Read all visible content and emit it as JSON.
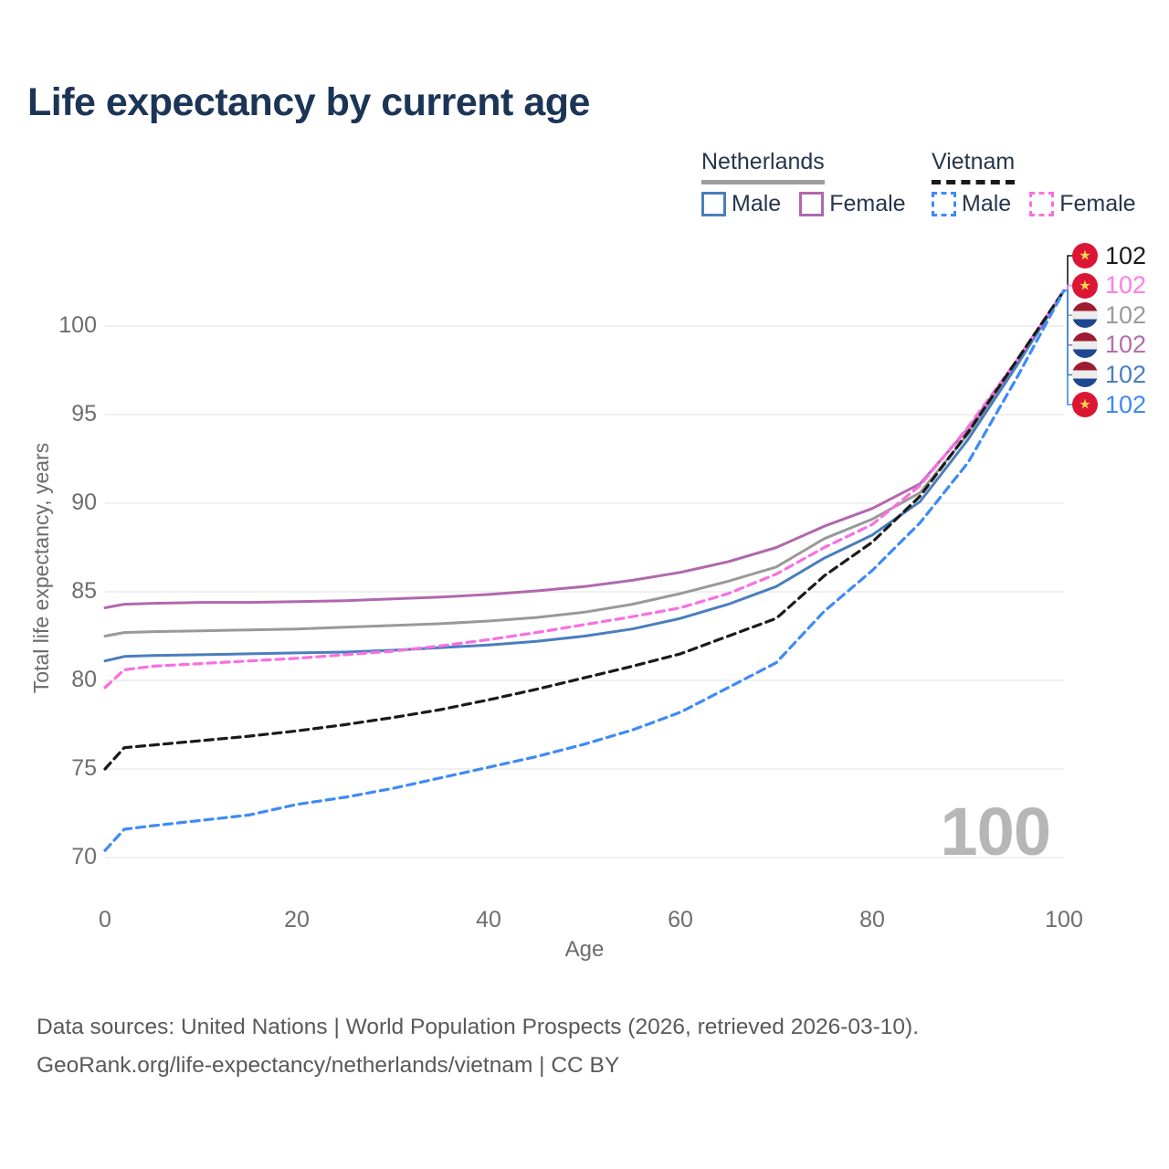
{
  "title": "Life expectancy by current age",
  "watermark": "100",
  "legend": {
    "groups": [
      {
        "label": "Netherlands",
        "line_style": "solid",
        "items": [
          {
            "label": "Male",
            "color": "#4a7ebd",
            "dashed": false
          },
          {
            "label": "Female",
            "color": "#b168ae",
            "dashed": false
          }
        ]
      },
      {
        "label": "Vietnam",
        "line_style": "dashed",
        "items": [
          {
            "label": "Male",
            "color": "#3e8af7",
            "dashed": true
          },
          {
            "label": "Female",
            "color": "#fa6fe0",
            "dashed": true
          }
        ]
      }
    ]
  },
  "chart_data": {
    "type": "line",
    "title": "Life expectancy by current age",
    "xlabel": "Age",
    "ylabel": "Total life expectancy, years",
    "xlim": [
      0,
      100
    ],
    "ylim": [
      70,
      102
    ],
    "x_ticks": [
      0,
      20,
      40,
      60,
      80,
      100
    ],
    "y_ticks": [
      70,
      75,
      80,
      85,
      90,
      95,
      100
    ],
    "grid": "horizontal",
    "legend_position": "top-right",
    "x": [
      0,
      2,
      5,
      10,
      15,
      20,
      25,
      30,
      35,
      40,
      45,
      50,
      55,
      60,
      65,
      70,
      75,
      80,
      85,
      90,
      95,
      100
    ],
    "series": [
      {
        "id": "netherlands-total",
        "name": "Netherlands",
        "country": "Netherlands",
        "sex": "Both",
        "color": "#999999",
        "dashed": false,
        "values": [
          82.5,
          82.7,
          82.75,
          82.8,
          82.85,
          82.9,
          83.0,
          83.1,
          83.2,
          83.35,
          83.55,
          83.85,
          84.3,
          84.9,
          85.6,
          86.4,
          88.0,
          89.1,
          90.6,
          93.9,
          97.8,
          102
        ]
      },
      {
        "id": "netherlands-female",
        "name": "Netherlands Female",
        "country": "Netherlands",
        "sex": "Female",
        "color": "#b168ae",
        "dashed": false,
        "values": [
          84.1,
          84.3,
          84.35,
          84.4,
          84.4,
          84.45,
          84.5,
          84.6,
          84.7,
          84.85,
          85.05,
          85.3,
          85.65,
          86.1,
          86.7,
          87.5,
          88.7,
          89.7,
          91.1,
          94.2,
          97.9,
          102
        ]
      },
      {
        "id": "netherlands-male",
        "name": "Netherlands Male",
        "country": "Netherlands",
        "sex": "Male",
        "color": "#4a7ebd",
        "dashed": false,
        "values": [
          81.1,
          81.35,
          81.4,
          81.45,
          81.5,
          81.55,
          81.6,
          81.7,
          81.85,
          82.0,
          82.2,
          82.5,
          82.9,
          83.5,
          84.3,
          85.3,
          86.9,
          88.2,
          90.1,
          93.6,
          97.7,
          102
        ]
      },
      {
        "id": "vietnam-female",
        "name": "Vietnam Female",
        "country": "Vietnam",
        "sex": "Female",
        "color": "#fa6fe0",
        "dashed": true,
        "values": [
          79.6,
          80.6,
          80.8,
          80.95,
          81.1,
          81.25,
          81.45,
          81.65,
          81.95,
          82.3,
          82.7,
          83.15,
          83.6,
          84.1,
          84.9,
          86.0,
          87.5,
          88.8,
          91.0,
          94.3,
          98.0,
          102
        ]
      },
      {
        "id": "vietnam-total",
        "name": "Vietnam",
        "country": "Vietnam",
        "sex": "Both",
        "color": "#1a1a1a",
        "dashed": true,
        "values": [
          75.0,
          76.2,
          76.35,
          76.6,
          76.85,
          77.15,
          77.5,
          77.9,
          78.35,
          78.9,
          79.5,
          80.15,
          80.8,
          81.5,
          82.5,
          83.5,
          85.9,
          87.8,
          90.4,
          94.0,
          98.0,
          102
        ]
      },
      {
        "id": "vietnam-male",
        "name": "Vietnam Male",
        "country": "Vietnam",
        "sex": "Male",
        "color": "#3e8af7",
        "dashed": true,
        "values": [
          70.4,
          71.6,
          71.8,
          72.1,
          72.4,
          73.0,
          73.4,
          73.9,
          74.5,
          75.1,
          75.7,
          76.4,
          77.2,
          78.2,
          79.6,
          81.0,
          83.9,
          86.2,
          88.9,
          92.3,
          97.0,
          102
        ]
      }
    ]
  },
  "end_labels": [
    {
      "flag": "vietnam",
      "series": "Vietnam",
      "value": "102",
      "color": "#1a1a1a"
    },
    {
      "flag": "vietnam",
      "series": "Vietnam Female",
      "value": "102",
      "color": "#ff7ce8"
    },
    {
      "flag": "netherlands",
      "series": "Netherlands",
      "value": "102",
      "color": "#9a9a9a"
    },
    {
      "flag": "netherlands",
      "series": "Netherlands Female",
      "value": "102",
      "color": "#b06fae"
    },
    {
      "flag": "netherlands",
      "series": "Netherlands Male",
      "value": "102",
      "color": "#4a7ebd"
    },
    {
      "flag": "vietnam",
      "series": "Vietnam Male",
      "value": "102",
      "color": "#3e8af7"
    }
  ],
  "footer": {
    "line1": "Data sources: United Nations | World Population Prospects (2026, retrieved 2026-03-10).",
    "line2": "GeoRank.org/life-expectancy/netherlands/vietnam | CC BY"
  }
}
